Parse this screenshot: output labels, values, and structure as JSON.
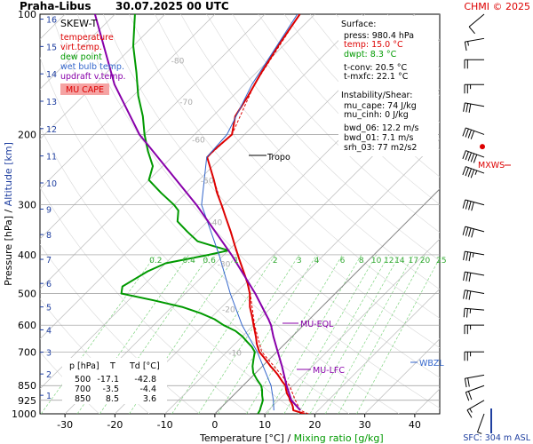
{
  "header": {
    "station": "Praha-Libus",
    "datetime": "30.07.2025 00 UTC",
    "copyright": "CHMI © 2025"
  },
  "legend": {
    "title": "SKEW-T",
    "items": [
      {
        "label": "temperature",
        "color": "#dd0000"
      },
      {
        "label": "virt.temp.",
        "color": "#dd0000"
      },
      {
        "label": "dew point",
        "color": "#009900"
      },
      {
        "label": "wet bulb temp.",
        "color": "#3366cc"
      },
      {
        "label": "updraft v.temp.",
        "color": "#8800aa"
      }
    ],
    "mu_cape_label": "MU CAPE"
  },
  "info_panel": {
    "surface_title": "Surface:",
    "surface_lines": [
      {
        "text": "press: 980.4 hPa",
        "color": "#000000"
      },
      {
        "text": "temp: 15.0 °C",
        "color": "#dd0000"
      },
      {
        "text": "dwpt: 8.3 °C",
        "color": "#009900"
      },
      {
        "text": "t-conv: 20.5 °C",
        "color": "#000000"
      },
      {
        "text": "t-mxfc: 22.1 °C",
        "color": "#000000"
      }
    ],
    "instability_title": "Instability/Shear:",
    "instability_lines": [
      "mu_cape: 74 J/kg",
      "mu_cinh: 0 J/kg",
      "bwd_06: 12.2 m/s",
      "bwd_01: 7.1 m/s",
      "srh_03: 77 m2/s2"
    ]
  },
  "level_table": {
    "headers": [
      "p [hPa]",
      "T",
      "Td [°C]"
    ],
    "rows": [
      [
        "500",
        "-17.1",
        "-42.8"
      ],
      [
        "700",
        "-3.5",
        "-4.4"
      ],
      [
        "850",
        "8.5",
        "3.6"
      ]
    ]
  },
  "annotations": {
    "tropo": "Tropo",
    "mu_eql": "MU-EQL",
    "mu_lfc": "MU-LFC",
    "wbzl": "WBZL",
    "mxws": "MXWS",
    "sfc": "SFC: 304 m ASL"
  },
  "chart_data": {
    "type": "line",
    "title": "Praha-Libus 30.07.2025 00 UTC",
    "xlabel": "Temperature [°C]",
    "xlabel_extra": "Mixing ratio [g/kg]",
    "ylabel": "Pressure [hPa]",
    "ylabel_extra": "Altitude [km]",
    "y_scale": "log",
    "xlim": [
      -35,
      45
    ],
    "ylim": [
      1000,
      100
    ],
    "x_ticks": [
      -30,
      -20,
      -10,
      0,
      10,
      20,
      30,
      40
    ],
    "y_ticks": [
      100,
      200,
      300,
      400,
      500,
      600,
      700,
      850,
      925,
      1000
    ],
    "altitude_ticks_km": [
      1,
      2,
      3,
      4,
      5,
      6,
      7,
      8,
      9,
      10,
      11,
      12,
      13,
      14,
      15,
      16
    ],
    "isotherm_labels": [
      -80,
      -70,
      -60,
      -50,
      -40,
      -30,
      -20,
      -10
    ],
    "mixing_ratio_labels": [
      "0.2",
      "0.4",
      "0.6",
      "1",
      "2",
      "3",
      "4",
      "6",
      "8",
      "10",
      "12",
      "14",
      "17",
      "20",
      "25"
    ],
    "series": [
      {
        "name": "temperature",
        "color": "#dd0000",
        "points": [
          [
            1000,
            18.0
          ],
          [
            980,
            15.0
          ],
          [
            960,
            14.2
          ],
          [
            940,
            13.2
          ],
          [
            925,
            12.3
          ],
          [
            910,
            11.6
          ],
          [
            890,
            10.4
          ],
          [
            870,
            9.4
          ],
          [
            850,
            8.5
          ],
          [
            830,
            7.0
          ],
          [
            800,
            4.9
          ],
          [
            780,
            3.3
          ],
          [
            760,
            1.6
          ],
          [
            740,
            0.0
          ],
          [
            720,
            -1.7
          ],
          [
            700,
            -3.5
          ],
          [
            670,
            -5.5
          ],
          [
            640,
            -7.3
          ],
          [
            600,
            -10.0
          ],
          [
            570,
            -12.1
          ],
          [
            540,
            -14.4
          ],
          [
            500,
            -17.1
          ],
          [
            470,
            -19.7
          ],
          [
            440,
            -22.8
          ],
          [
            410,
            -26.1
          ],
          [
            380,
            -29.6
          ],
          [
            350,
            -33.3
          ],
          [
            320,
            -37.5
          ],
          [
            300,
            -40.5
          ],
          [
            280,
            -43.8
          ],
          [
            260,
            -47.0
          ],
          [
            240,
            -50.6
          ],
          [
            228,
            -52.9
          ],
          [
            220,
            -53.0
          ],
          [
            200,
            -52.5
          ],
          [
            180,
            -55.5
          ],
          [
            160,
            -57.0
          ],
          [
            140,
            -59.0
          ],
          [
            120,
            -61.0
          ],
          [
            100,
            -63.0
          ]
        ]
      },
      {
        "name": "virt.temp.",
        "color": "#dd0000",
        "points": [
          [
            1000,
            18.7
          ],
          [
            980,
            16.4
          ],
          [
            925,
            13.4
          ],
          [
            850,
            9.3
          ],
          [
            800,
            5.6
          ],
          [
            700,
            -3.0
          ],
          [
            600,
            -9.8
          ],
          [
            500,
            -17.0
          ],
          [
            400,
            -27.2
          ],
          [
            300,
            -40.5
          ],
          [
            228,
            -52.9
          ],
          [
            200,
            -52.5
          ],
          [
            150,
            -58.0
          ],
          [
            100,
            -63.0
          ]
        ]
      },
      {
        "name": "dew point",
        "color": "#009900",
        "points": [
          [
            1000,
            8.6
          ],
          [
            980,
            8.3
          ],
          [
            960,
            7.8
          ],
          [
            940,
            7.3
          ],
          [
            925,
            6.9
          ],
          [
            900,
            5.8
          ],
          [
            870,
            4.6
          ],
          [
            850,
            3.6
          ],
          [
            820,
            1.5
          ],
          [
            790,
            -0.5
          ],
          [
            760,
            -2.0
          ],
          [
            730,
            -3.2
          ],
          [
            700,
            -4.4
          ],
          [
            680,
            -6.0
          ],
          [
            660,
            -8.0
          ],
          [
            640,
            -10.0
          ],
          [
            620,
            -12.5
          ],
          [
            600,
            -16.0
          ],
          [
            580,
            -19.0
          ],
          [
            560,
            -23.0
          ],
          [
            540,
            -28.0
          ],
          [
            520,
            -35.0
          ],
          [
            500,
            -42.8
          ],
          [
            480,
            -44.0
          ],
          [
            460,
            -43.0
          ],
          [
            440,
            -42.0
          ],
          [
            420,
            -40.0
          ],
          [
            400,
            -33.0
          ],
          [
            390,
            -30.0
          ],
          [
            380,
            -34.0
          ],
          [
            370,
            -38.0
          ],
          [
            350,
            -42.0
          ],
          [
            330,
            -46.0
          ],
          [
            310,
            -48.0
          ],
          [
            300,
            -50.0
          ],
          [
            280,
            -55.0
          ],
          [
            260,
            -60.0
          ],
          [
            240,
            -62.0
          ],
          [
            220,
            -66.0
          ],
          [
            200,
            -70.0
          ],
          [
            180,
            -74.0
          ],
          [
            160,
            -79.0
          ],
          [
            140,
            -84.0
          ],
          [
            120,
            -90.0
          ],
          [
            100,
            -96.0
          ]
        ]
      },
      {
        "name": "wet bulb temp.",
        "color": "#3366cc",
        "points": [
          [
            980,
            11.1
          ],
          [
            925,
            9.0
          ],
          [
            850,
            5.6
          ],
          [
            700,
            -3.9
          ],
          [
            600,
            -12.3
          ],
          [
            500,
            -21.0
          ],
          [
            400,
            -31.0
          ],
          [
            300,
            -44.5
          ],
          [
            228,
            -53.0
          ],
          [
            200,
            -53.5
          ],
          [
            150,
            -58.5
          ],
          [
            100,
            -63.5
          ]
        ]
      },
      {
        "name": "updraft v.temp.",
        "color": "#8800aa",
        "points": [
          [
            980,
            16.4
          ],
          [
            925,
            12.6
          ],
          [
            850,
            8.7
          ],
          [
            760,
            3.9
          ],
          [
            700,
            0.2
          ],
          [
            640,
            -3.8
          ],
          [
            600,
            -6.5
          ],
          [
            580,
            -8.2
          ],
          [
            500,
            -16.0
          ],
          [
            400,
            -28.5
          ],
          [
            300,
            -45.5
          ],
          [
            200,
            -71.0
          ],
          [
            150,
            -86.0
          ],
          [
            100,
            -104.0
          ]
        ]
      }
    ],
    "wind_barbs": [
      {
        "p": 1000,
        "dir": 200,
        "speed_kt": 5
      },
      {
        "p": 925,
        "dir": 240,
        "speed_kt": 15
      },
      {
        "p": 850,
        "dir": 250,
        "speed_kt": 20
      },
      {
        "p": 800,
        "dir": 260,
        "speed_kt": 20
      },
      {
        "p": 700,
        "dir": 270,
        "speed_kt": 25
      },
      {
        "p": 600,
        "dir": 270,
        "speed_kt": 25
      },
      {
        "p": 550,
        "dir": 275,
        "speed_kt": 25
      },
      {
        "p": 500,
        "dir": 280,
        "speed_kt": 30
      },
      {
        "p": 450,
        "dir": 280,
        "speed_kt": 30
      },
      {
        "p": 400,
        "dir": 280,
        "speed_kt": 35
      },
      {
        "p": 350,
        "dir": 285,
        "speed_kt": 40
      },
      {
        "p": 300,
        "dir": 285,
        "speed_kt": 40
      },
      {
        "p": 250,
        "dir": 290,
        "speed_kt": 45
      },
      {
        "p": 228,
        "dir": 290,
        "speed_kt": 50
      },
      {
        "p": 200,
        "dir": 290,
        "speed_kt": 40
      },
      {
        "p": 170,
        "dir": 280,
        "speed_kt": 30
      },
      {
        "p": 150,
        "dir": 270,
        "speed_kt": 25
      },
      {
        "p": 130,
        "dir": 270,
        "speed_kt": 20
      },
      {
        "p": 115,
        "dir": 260,
        "speed_kt": 15
      },
      {
        "p": 100,
        "dir": 230,
        "speed_kt": 10
      }
    ]
  }
}
